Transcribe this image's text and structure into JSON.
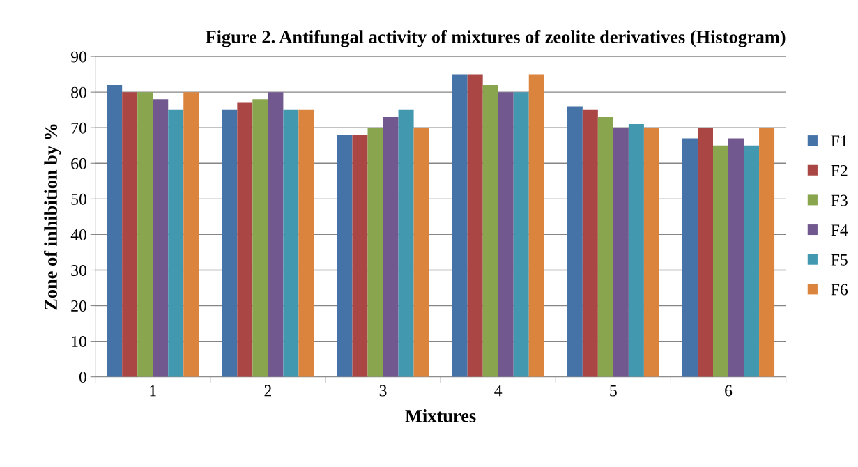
{
  "chart_data": {
    "type": "bar",
    "title": "Figure 2. Antifungal activity of mixtures of zeolite derivatives (Histogram)",
    "xlabel": "Mixtures",
    "ylabel": "Zone of inhibition by %",
    "categories": [
      "1",
      "2",
      "3",
      "4",
      "5",
      "6"
    ],
    "series": [
      {
        "name": "F1",
        "color": "#4572a7",
        "values": [
          82,
          75,
          68,
          85,
          76,
          67
        ]
      },
      {
        "name": "F2",
        "color": "#aa4643",
        "values": [
          80,
          77,
          68,
          85,
          75,
          70
        ]
      },
      {
        "name": "F3",
        "color": "#89a54e",
        "values": [
          80,
          78,
          70,
          82,
          73,
          65
        ]
      },
      {
        "name": "F4",
        "color": "#71588f",
        "values": [
          78,
          80,
          73,
          80,
          70,
          67
        ]
      },
      {
        "name": "F5",
        "color": "#4198af",
        "values": [
          75,
          75,
          75,
          80,
          71,
          65
        ]
      },
      {
        "name": "F6",
        "color": "#db843d",
        "values": [
          80,
          75,
          70,
          85,
          70,
          70
        ]
      }
    ],
    "ylim": [
      0,
      90
    ],
    "yticks": [
      0,
      10,
      20,
      30,
      40,
      50,
      60,
      70,
      80,
      90
    ],
    "grid": "y",
    "legend": "right"
  }
}
